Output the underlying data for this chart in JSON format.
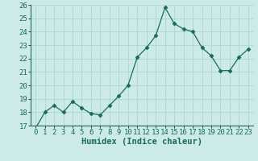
{
  "x": [
    0,
    1,
    2,
    3,
    4,
    5,
    6,
    7,
    8,
    9,
    10,
    11,
    12,
    13,
    14,
    15,
    16,
    17,
    18,
    19,
    20,
    21,
    22,
    23
  ],
  "y": [
    16.8,
    18.0,
    18.5,
    18.0,
    18.8,
    18.3,
    17.9,
    17.8,
    18.5,
    19.2,
    20.0,
    22.1,
    22.8,
    23.7,
    25.8,
    24.6,
    24.2,
    24.0,
    22.8,
    22.2,
    21.1,
    21.1,
    22.1,
    22.7
  ],
  "ylim": [
    17,
    26
  ],
  "yticks": [
    17,
    18,
    19,
    20,
    21,
    22,
    23,
    24,
    25,
    26
  ],
  "xlabel": "Humidex (Indice chaleur)",
  "line_color": "#1a6b5a",
  "marker": "D",
  "marker_size": 2.5,
  "bg_color": "#cceae8",
  "grid_color": "#b0d8d5",
  "tick_label_fontsize": 6.5,
  "xlabel_fontsize": 7.5
}
